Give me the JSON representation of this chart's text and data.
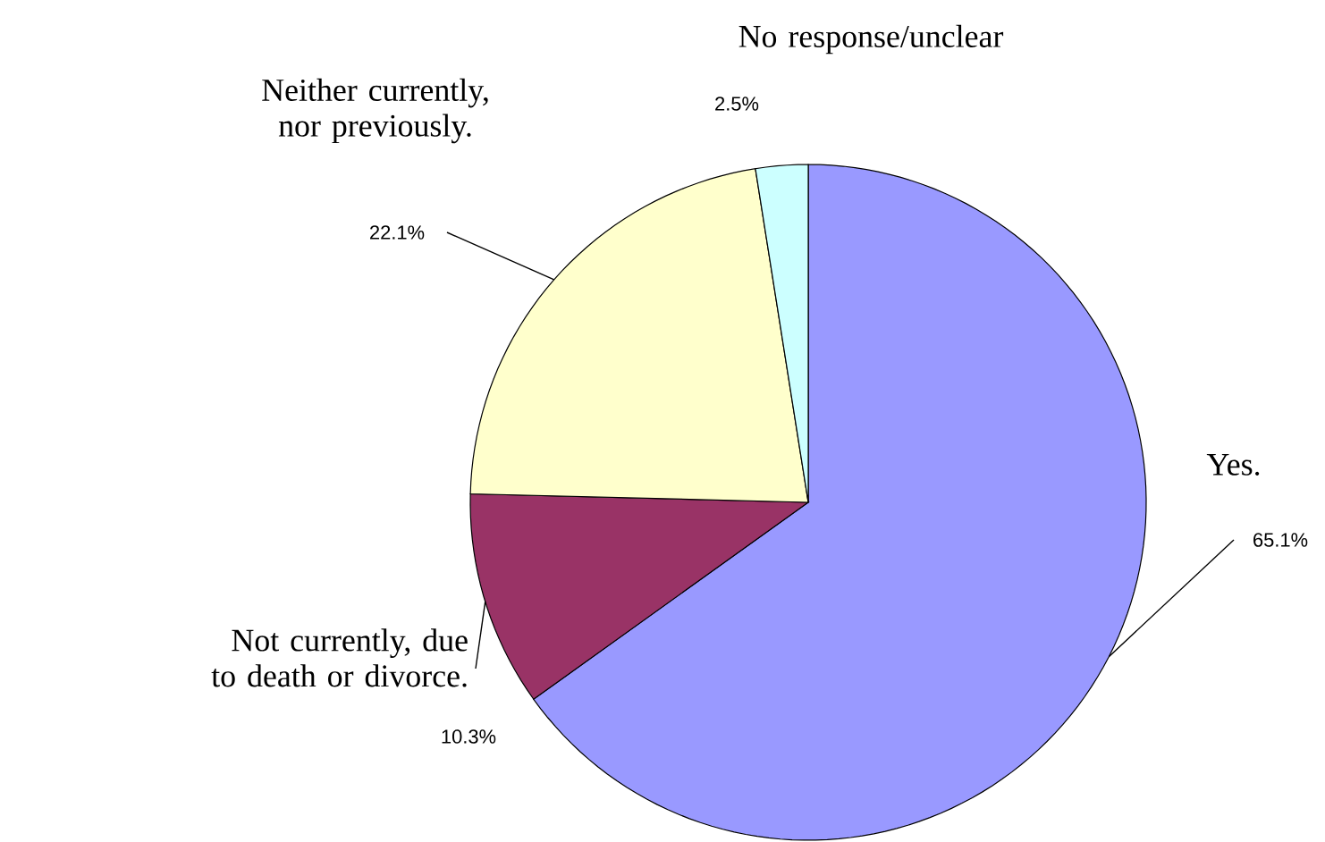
{
  "chart_data": {
    "type": "pie",
    "categories": [
      "Yes.",
      "Not currently, due to death or divorce.",
      "Neither currently, nor previously.",
      "No response/unclear"
    ],
    "values": [
      65.1,
      10.3,
      22.1,
      2.5
    ],
    "value_labels": [
      "65.1%",
      "10.3%",
      "22.1%",
      "2.5%"
    ],
    "colors": [
      "#9999ff",
      "#993366",
      "#ffffcc",
      "#ccffff"
    ]
  }
}
